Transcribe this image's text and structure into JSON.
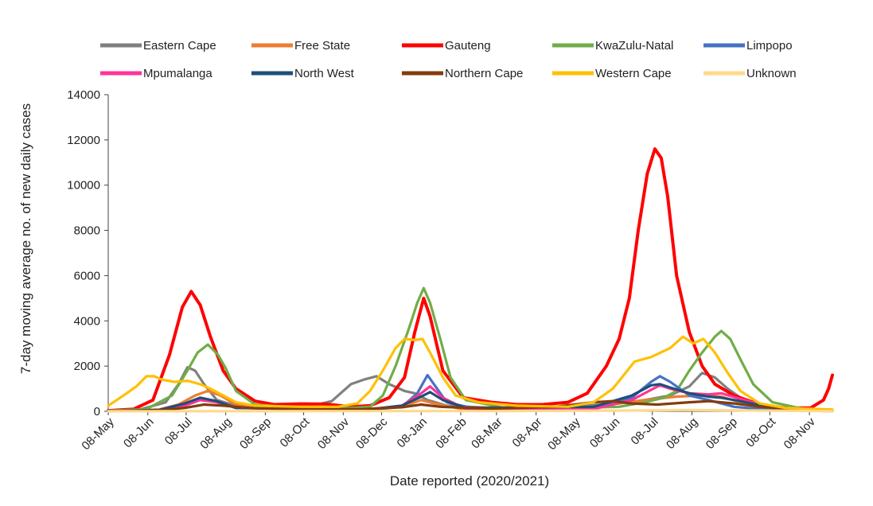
{
  "chart_data": {
    "type": "line",
    "title": "",
    "xlabel": "Date reported (2020/2021)",
    "ylabel": "7-day moving average no. of new daily cases",
    "ylim": [
      0,
      14000
    ],
    "y_ticks": [
      0,
      2000,
      4000,
      6000,
      8000,
      10000,
      12000,
      14000
    ],
    "y_tick_labels": [
      "0",
      "2000",
      "4000",
      "6000",
      "8000",
      "10000",
      "12000",
      "14000"
    ],
    "x_range": [
      0,
      567
    ],
    "x_tick_labels": [
      "08-May",
      "08-Jun",
      "08-Jul",
      "08-Aug",
      "08-Sep",
      "08-Oct",
      "08-Nov",
      "08-Dec",
      "08-Jan",
      "08-Feb",
      "08-Mar",
      "08-Apr",
      "08-May",
      "08-Jun",
      "08-Jul",
      "08-Aug",
      "08-Sep",
      "08-Oct",
      "08-Nov"
    ],
    "x_tick_days": [
      0,
      31,
      61,
      92,
      123,
      153,
      184,
      214,
      245,
      276,
      304,
      335,
      365,
      396,
      426,
      457,
      488,
      518,
      549
    ],
    "grid": false,
    "legend_position": "top",
    "series": [
      {
        "name": "Eastern Cape",
        "color": "#808080",
        "points": [
          [
            0,
            30
          ],
          [
            25,
            80
          ],
          [
            45,
            400
          ],
          [
            55,
            1200
          ],
          [
            62,
            1950
          ],
          [
            68,
            1800
          ],
          [
            75,
            1200
          ],
          [
            85,
            500
          ],
          [
            100,
            250
          ],
          [
            140,
            200
          ],
          [
            160,
            250
          ],
          [
            175,
            450
          ],
          [
            190,
            1200
          ],
          [
            200,
            1400
          ],
          [
            210,
            1550
          ],
          [
            220,
            1200
          ],
          [
            232,
            900
          ],
          [
            240,
            800
          ],
          [
            250,
            500
          ],
          [
            265,
            250
          ],
          [
            300,
            150
          ],
          [
            340,
            150
          ],
          [
            375,
            250
          ],
          [
            400,
            350
          ],
          [
            420,
            500
          ],
          [
            440,
            700
          ],
          [
            455,
            1100
          ],
          [
            465,
            1700
          ],
          [
            475,
            1500
          ],
          [
            485,
            1000
          ],
          [
            500,
            400
          ],
          [
            520,
            150
          ],
          [
            560,
            80
          ],
          [
            567,
            50
          ]
        ]
      },
      {
        "name": "Free State",
        "color": "#ed7d31",
        "points": [
          [
            0,
            10
          ],
          [
            40,
            80
          ],
          [
            55,
            300
          ],
          [
            68,
            700
          ],
          [
            78,
            900
          ],
          [
            88,
            700
          ],
          [
            100,
            300
          ],
          [
            130,
            120
          ],
          [
            200,
            100
          ],
          [
            230,
            200
          ],
          [
            245,
            500
          ],
          [
            255,
            350
          ],
          [
            275,
            120
          ],
          [
            330,
            100
          ],
          [
            380,
            200
          ],
          [
            420,
            500
          ],
          [
            445,
            650
          ],
          [
            465,
            700
          ],
          [
            480,
            650
          ],
          [
            495,
            400
          ],
          [
            520,
            150
          ],
          [
            567,
            40
          ]
        ]
      },
      {
        "name": "Gauteng",
        "color": "#ff0000",
        "points": [
          [
            0,
            30
          ],
          [
            20,
            100
          ],
          [
            35,
            500
          ],
          [
            48,
            2500
          ],
          [
            58,
            4600
          ],
          [
            65,
            5300
          ],
          [
            72,
            4700
          ],
          [
            80,
            3300
          ],
          [
            90,
            1800
          ],
          [
            100,
            1000
          ],
          [
            115,
            450
          ],
          [
            130,
            300
          ],
          [
            150,
            330
          ],
          [
            170,
            320
          ],
          [
            190,
            200
          ],
          [
            205,
            250
          ],
          [
            220,
            600
          ],
          [
            232,
            1500
          ],
          [
            240,
            3500
          ],
          [
            247,
            5000
          ],
          [
            252,
            4200
          ],
          [
            262,
            1800
          ],
          [
            278,
            600
          ],
          [
            300,
            400
          ],
          [
            320,
            300
          ],
          [
            340,
            300
          ],
          [
            360,
            400
          ],
          [
            375,
            800
          ],
          [
            390,
            2000
          ],
          [
            400,
            3200
          ],
          [
            408,
            5000
          ],
          [
            415,
            8000
          ],
          [
            422,
            10500
          ],
          [
            428,
            11600
          ],
          [
            433,
            11200
          ],
          [
            438,
            9500
          ],
          [
            445,
            6000
          ],
          [
            455,
            3500
          ],
          [
            465,
            2000
          ],
          [
            475,
            1200
          ],
          [
            490,
            700
          ],
          [
            510,
            300
          ],
          [
            530,
            150
          ],
          [
            550,
            150
          ],
          [
            560,
            500
          ],
          [
            564,
            1000
          ],
          [
            567,
            1600
          ]
        ]
      },
      {
        "name": "KwaZulu-Natal",
        "color": "#70ad47",
        "points": [
          [
            0,
            20
          ],
          [
            30,
            100
          ],
          [
            50,
            700
          ],
          [
            62,
            1800
          ],
          [
            70,
            2600
          ],
          [
            78,
            2950
          ],
          [
            86,
            2500
          ],
          [
            92,
            1900
          ],
          [
            100,
            900
          ],
          [
            115,
            300
          ],
          [
            150,
            150
          ],
          [
            190,
            150
          ],
          [
            205,
            200
          ],
          [
            215,
            700
          ],
          [
            225,
            2000
          ],
          [
            235,
            3600
          ],
          [
            242,
            4800
          ],
          [
            247,
            5450
          ],
          [
            252,
            4800
          ],
          [
            260,
            3200
          ],
          [
            268,
            1500
          ],
          [
            280,
            500
          ],
          [
            310,
            150
          ],
          [
            360,
            150
          ],
          [
            400,
            200
          ],
          [
            420,
            400
          ],
          [
            435,
            600
          ],
          [
            445,
            900
          ],
          [
            455,
            1800
          ],
          [
            465,
            2600
          ],
          [
            475,
            3300
          ],
          [
            480,
            3550
          ],
          [
            487,
            3200
          ],
          [
            495,
            2300
          ],
          [
            505,
            1200
          ],
          [
            520,
            400
          ],
          [
            545,
            100
          ],
          [
            567,
            50
          ]
        ]
      },
      {
        "name": "Limpopo",
        "color": "#4472c4",
        "points": [
          [
            0,
            5
          ],
          [
            40,
            50
          ],
          [
            60,
            300
          ],
          [
            72,
            550
          ],
          [
            85,
            400
          ],
          [
            100,
            150
          ],
          [
            200,
            40
          ],
          [
            230,
            200
          ],
          [
            242,
            800
          ],
          [
            250,
            1600
          ],
          [
            255,
            1200
          ],
          [
            265,
            400
          ],
          [
            290,
            80
          ],
          [
            380,
            100
          ],
          [
            410,
            600
          ],
          [
            425,
            1300
          ],
          [
            432,
            1550
          ],
          [
            440,
            1300
          ],
          [
            455,
            700
          ],
          [
            470,
            500
          ],
          [
            490,
            200
          ],
          [
            520,
            50
          ],
          [
            567,
            10
          ]
        ]
      },
      {
        "name": "Mpumalanga",
        "color": "#ff3399",
        "points": [
          [
            0,
            5
          ],
          [
            40,
            50
          ],
          [
            60,
            250
          ],
          [
            72,
            500
          ],
          [
            85,
            400
          ],
          [
            100,
            150
          ],
          [
            200,
            50
          ],
          [
            230,
            250
          ],
          [
            245,
            800
          ],
          [
            252,
            1100
          ],
          [
            262,
            600
          ],
          [
            280,
            100
          ],
          [
            380,
            100
          ],
          [
            410,
            500
          ],
          [
            425,
            950
          ],
          [
            432,
            1150
          ],
          [
            440,
            1000
          ],
          [
            455,
            800
          ],
          [
            470,
            750
          ],
          [
            480,
            800
          ],
          [
            495,
            550
          ],
          [
            520,
            150
          ],
          [
            567,
            20
          ]
        ]
      },
      {
        "name": "North West",
        "color": "#1f4e79",
        "points": [
          [
            0,
            5
          ],
          [
            40,
            60
          ],
          [
            60,
            350
          ],
          [
            72,
            600
          ],
          [
            85,
            450
          ],
          [
            100,
            150
          ],
          [
            200,
            60
          ],
          [
            230,
            250
          ],
          [
            245,
            650
          ],
          [
            252,
            850
          ],
          [
            262,
            500
          ],
          [
            280,
            150
          ],
          [
            380,
            200
          ],
          [
            410,
            700
          ],
          [
            425,
            1150
          ],
          [
            432,
            1200
          ],
          [
            440,
            1050
          ],
          [
            455,
            800
          ],
          [
            470,
            650
          ],
          [
            480,
            600
          ],
          [
            495,
            450
          ],
          [
            520,
            150
          ],
          [
            567,
            30
          ]
        ]
      },
      {
        "name": "Northern Cape",
        "color": "#843c0c",
        "points": [
          [
            0,
            10
          ],
          [
            40,
            40
          ],
          [
            60,
            150
          ],
          [
            75,
            300
          ],
          [
            90,
            250
          ],
          [
            110,
            150
          ],
          [
            150,
            80
          ],
          [
            200,
            100
          ],
          [
            230,
            180
          ],
          [
            245,
            300
          ],
          [
            260,
            200
          ],
          [
            300,
            120
          ],
          [
            350,
            200
          ],
          [
            380,
            400
          ],
          [
            395,
            450
          ],
          [
            410,
            350
          ],
          [
            430,
            300
          ],
          [
            455,
            400
          ],
          [
            470,
            450
          ],
          [
            490,
            350
          ],
          [
            510,
            200
          ],
          [
            540,
            80
          ],
          [
            567,
            40
          ]
        ]
      },
      {
        "name": "Western Cape",
        "color": "#ffc000",
        "points": [
          [
            0,
            250
          ],
          [
            12,
            700
          ],
          [
            22,
            1100
          ],
          [
            30,
            1550
          ],
          [
            36,
            1550
          ],
          [
            42,
            1400
          ],
          [
            52,
            1300
          ],
          [
            62,
            1350
          ],
          [
            72,
            1200
          ],
          [
            80,
            1000
          ],
          [
            90,
            700
          ],
          [
            100,
            400
          ],
          [
            115,
            250
          ],
          [
            150,
            200
          ],
          [
            180,
            200
          ],
          [
            195,
            350
          ],
          [
            205,
            900
          ],
          [
            215,
            1800
          ],
          [
            225,
            2800
          ],
          [
            232,
            3200
          ],
          [
            240,
            3150
          ],
          [
            246,
            3200
          ],
          [
            252,
            2600
          ],
          [
            262,
            1500
          ],
          [
            272,
            700
          ],
          [
            290,
            400
          ],
          [
            320,
            250
          ],
          [
            360,
            200
          ],
          [
            380,
            400
          ],
          [
            395,
            1000
          ],
          [
            405,
            1700
          ],
          [
            412,
            2200
          ],
          [
            425,
            2400
          ],
          [
            440,
            2800
          ],
          [
            450,
            3300
          ],
          [
            458,
            3000
          ],
          [
            466,
            3200
          ],
          [
            475,
            2600
          ],
          [
            485,
            1700
          ],
          [
            495,
            900
          ],
          [
            510,
            350
          ],
          [
            530,
            150
          ],
          [
            567,
            80
          ]
        ]
      },
      {
        "name": "Unknown",
        "color": "#ffd98a",
        "points": [
          [
            0,
            5
          ],
          [
            200,
            10
          ],
          [
            300,
            10
          ],
          [
            400,
            30
          ],
          [
            450,
            60
          ],
          [
            500,
            40
          ],
          [
            567,
            10
          ]
        ]
      }
    ]
  }
}
